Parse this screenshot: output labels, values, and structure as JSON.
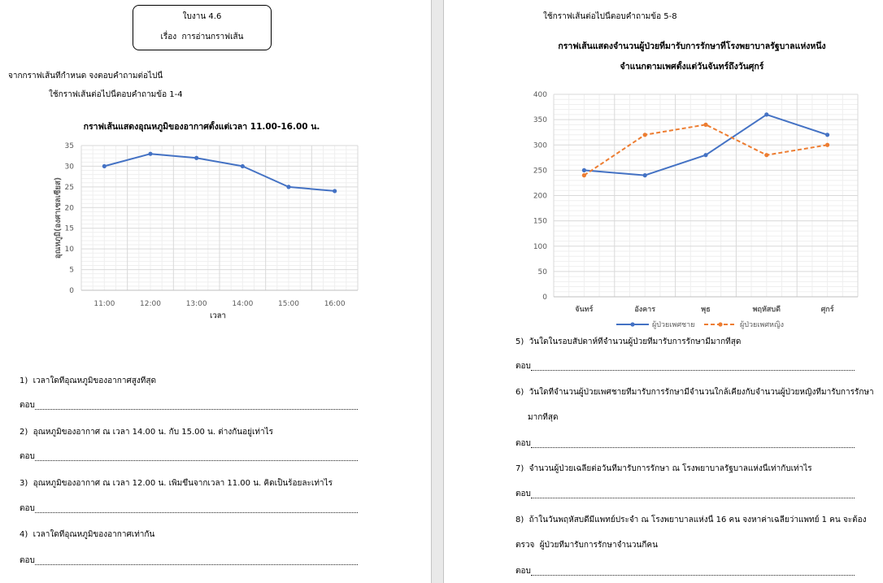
{
  "left_page": {
    "title_box": {
      "line1": "ใบงาน 4.6",
      "line2": "เรื่อง  การอ่านกราฟเส้น"
    },
    "instruction": "จากกราฟเส้นที่กำหนด จงตอบคำถามต่อไปนี้",
    "chart_intro": "ใช้กราฟเส้นต่อไปนี้ตอบคำถามข้อ 1-4",
    "questions": [
      {
        "text": "1)  เวลาใดที่อุณหภูมิของอากาศสูงที่สุด",
        "answer_label": "ตอบ"
      },
      {
        "text": "2)  อุณหภูมิของอากาศ ณ เวลา 14.00 น. กับ 15.00 น. ต่างกันอยู่เท่าไร",
        "answer_label": "ตอบ"
      },
      {
        "text": "3)  อุณหภูมิของอากาศ ณ เวลา 12.00 น. เพิ่มขึ้นจากเวลา 11.00 น. คิดเป็นร้อยละเท่าไร",
        "answer_label": "ตอบ"
      },
      {
        "text": "4)  เวลาใดที่อุณหภูมิของอากาศเท่ากัน",
        "answer_label": "ตอบ"
      }
    ]
  },
  "right_page": {
    "chart_intro": "ใช้กราฟเส้นต่อไปนี้ตอบคำถามข้อ 5-8",
    "questions": [
      {
        "text": "5)  วันใดในรอบสัปดาห์ที่จำนวนผู้ป่วยที่มารับการรักษามีมากที่สุด",
        "answer_label": "ตอบ"
      },
      {
        "text": "6)  วันใดที่จำนวนผู้ป่วยเพศชายที่มารับการรักษามีจำนวนใกล้เคียงกับจำนวนผู้ป่วยหญิงที่มารับการรักษา",
        "text_cont": "มากที่สุด",
        "answer_label": "ตอบ"
      },
      {
        "text": "7)  จำนวนผู้ป่วยเฉลี่ยต่อวันที่มารับการรักษา ณ โรงพยาบาลรัฐบาลแห่งนี้เท่ากับเท่าไร",
        "answer_label": "ตอบ"
      },
      {
        "text": "8)  ถ้าในวันพฤหัสบดีมีแพทย์ประจำ ณ โรงพยาบาลแห่งนี้ 16 คน จงหาค่าเฉลี่ยว่าแพทย์ 1 คน จะต้อง",
        "text_cont": "ตรวจ  ผู้ป่วยที่มารับการรักษาจำนวนกี่คน",
        "answer_label": "ตอบ"
      }
    ]
  },
  "chart_data": [
    {
      "type": "line",
      "title": "กราฟเส้นแสดงอุณหภูมิของอากาศตั้งแต่เวลา 11.00-16.00 น.",
      "xlabel": "เวลา",
      "ylabel": "อุณหภูมิ(องศาเซลเซียส)",
      "categories": [
        "11:00",
        "12:00",
        "13:00",
        "14:00",
        "15:00",
        "16:00"
      ],
      "series": [
        {
          "values": [
            30,
            33,
            32,
            30,
            25,
            24
          ],
          "color": "#4472c4",
          "line_style": "solid"
        }
      ],
      "ylim": [
        0,
        35
      ],
      "yticks": [
        0,
        5,
        10,
        15,
        20,
        25,
        30,
        35
      ],
      "grid": true
    },
    {
      "type": "line",
      "title": "กราฟเส้นแสดงจำนวนผู้ป่วยที่มารับการรักษาที่โรงพยาบาลรัฐบาลแห่งหนึ่ง",
      "subtitle": "จำแนกตามเพศตั้งแต่วันจันทร์ถึงวันศุกร์",
      "categories": [
        "จันทร์",
        "อังคาร",
        "พุธ",
        "พฤหัสบดี",
        "ศุกร์"
      ],
      "series": [
        {
          "name": "ผู้ป่วยเพศชาย",
          "values": [
            250,
            240,
            280,
            360,
            320
          ],
          "color": "#4472c4",
          "line_style": "solid"
        },
        {
          "name": "ผู้ป่วยเพศหญิง",
          "values": [
            240,
            320,
            340,
            280,
            300
          ],
          "color": "#ed7d31",
          "line_style": "dashed"
        }
      ],
      "ylim": [
        0,
        400
      ],
      "yticks": [
        0,
        50,
        100,
        150,
        200,
        250,
        300,
        350,
        400
      ],
      "grid": true,
      "legend": "bottom"
    }
  ]
}
